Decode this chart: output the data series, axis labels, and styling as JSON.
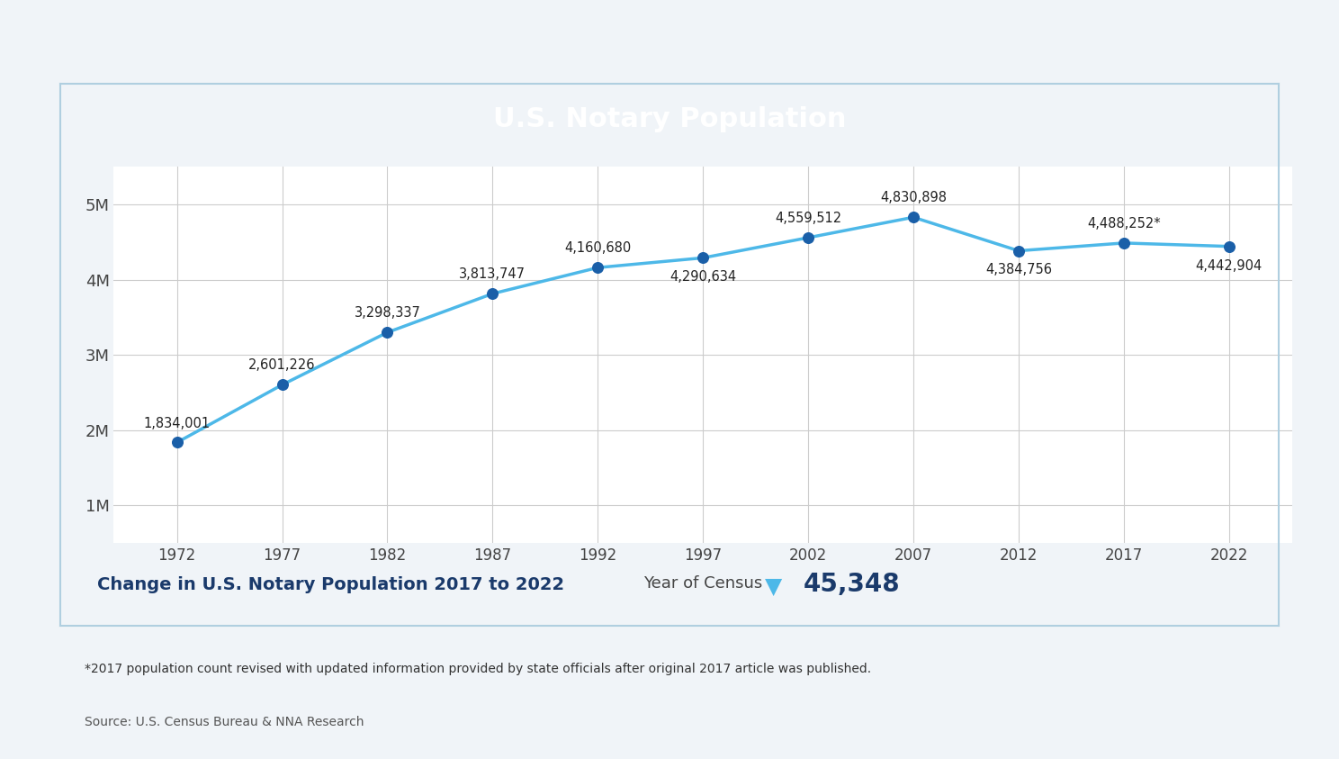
{
  "title": "U.S. Notary Population",
  "title_bg_color": "#1a3a6b",
  "title_text_color": "#ffffff",
  "years": [
    1972,
    1977,
    1982,
    1987,
    1992,
    1997,
    2002,
    2007,
    2012,
    2017,
    2022
  ],
  "values": [
    1834001,
    2601226,
    3298337,
    3813747,
    4160680,
    4290634,
    4559512,
    4830898,
    4384756,
    4488252,
    4442904
  ],
  "labels": [
    "1,834,001",
    "2,601,226",
    "3,298,337",
    "3,813,747",
    "4,160,680",
    "4,290,634",
    "4,559,512",
    "4,830,898",
    "4,384,756",
    "4,488,252*",
    "4,442,904"
  ],
  "label_above": [
    true,
    true,
    true,
    true,
    true,
    false,
    true,
    true,
    false,
    true,
    false
  ],
  "line_color": "#4db8e8",
  "marker_color": "#1a5fa8",
  "xlabel": "Year of Census",
  "ylabel_ticks": [
    "1M",
    "2M",
    "3M",
    "4M",
    "5M"
  ],
  "ytick_values": [
    1000000,
    2000000,
    3000000,
    4000000,
    5000000
  ],
  "ylim": [
    500000,
    5500000
  ],
  "xlim": [
    1969,
    2025
  ],
  "grid_color": "#cccccc",
  "bg_color": "#ffffff",
  "outer_bg_color": "#f0f4f8",
  "chart_border_color": "#b0cfe0",
  "change_text": "Change in U.S. Notary Population 2017 to 2022",
  "change_value": "45,348",
  "change_text_color": "#1a3a6b",
  "arrow_color": "#4db8e8",
  "footnote": "*2017 population count revised with updated information provided by state officials after original 2017 article was published.",
  "source": "Source: U.S. Census Bureau & NNA Research"
}
